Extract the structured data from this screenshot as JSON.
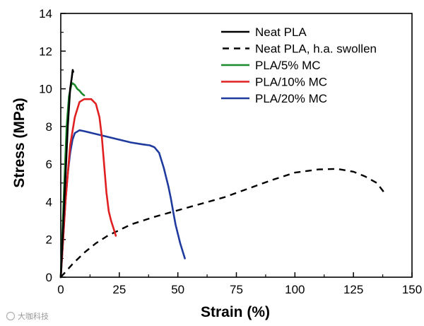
{
  "chart_data": {
    "type": "line",
    "title": "",
    "xlabel": "Strain (%)",
    "ylabel": "Stress (MPa)",
    "xlim": [
      0,
      150
    ],
    "ylim": [
      0,
      14
    ],
    "x_ticks": [
      0,
      25,
      50,
      75,
      100,
      125,
      150
    ],
    "y_ticks": [
      0,
      2,
      4,
      6,
      8,
      10,
      12,
      14
    ],
    "legend_position": "top-right",
    "series": [
      {
        "name": "Neat PLA",
        "color": "#000000",
        "dash": "solid",
        "points": [
          [
            0,
            0
          ],
          [
            1.5,
            4
          ],
          [
            3,
            8
          ],
          [
            4,
            10
          ],
          [
            4.7,
            10.6
          ],
          [
            5.1,
            11.0
          ],
          [
            5.3,
            10.9
          ]
        ]
      },
      {
        "name": "Neat PLA, h.a. swollen",
        "color": "#000000",
        "dash": "dashed",
        "points": [
          [
            0,
            0
          ],
          [
            5,
            0.7
          ],
          [
            10,
            1.3
          ],
          [
            15,
            1.8
          ],
          [
            20,
            2.2
          ],
          [
            30,
            2.8
          ],
          [
            40,
            3.2
          ],
          [
            50,
            3.55
          ],
          [
            60,
            3.9
          ],
          [
            70,
            4.25
          ],
          [
            80,
            4.7
          ],
          [
            90,
            5.15
          ],
          [
            100,
            5.55
          ],
          [
            110,
            5.72
          ],
          [
            118,
            5.75
          ],
          [
            125,
            5.6
          ],
          [
            130,
            5.35
          ],
          [
            135,
            5.0
          ],
          [
            139,
            4.35
          ]
        ]
      },
      {
        "name": "PLA/5% MC",
        "color": "#1a8a2a",
        "dash": "solid",
        "points": [
          [
            0,
            0
          ],
          [
            1.5,
            5
          ],
          [
            2.5,
            8
          ],
          [
            3.5,
            9.6
          ],
          [
            4.5,
            10.2
          ],
          [
            5,
            10.3
          ],
          [
            6,
            10.2
          ],
          [
            7,
            10.0
          ],
          [
            8,
            9.9
          ],
          [
            9,
            9.75
          ],
          [
            10,
            9.65
          ]
        ]
      },
      {
        "name": "PLA/10% MC",
        "color": "#e02020",
        "dash": "solid",
        "points": [
          [
            0,
            0
          ],
          [
            2,
            4
          ],
          [
            4,
            7
          ],
          [
            6,
            8.5
          ],
          [
            8,
            9.3
          ],
          [
            10,
            9.45
          ],
          [
            13,
            9.45
          ],
          [
            15,
            9.2
          ],
          [
            16.5,
            8.5
          ],
          [
            17.5,
            7.5
          ],
          [
            18.5,
            6
          ],
          [
            19.5,
            4.5
          ],
          [
            20.5,
            3.5
          ],
          [
            21.5,
            3.0
          ],
          [
            22.5,
            2.6
          ],
          [
            23.5,
            2.2
          ]
        ]
      },
      {
        "name": "PLA/20% MC",
        "color": "#1f3b9e",
        "dash": "solid",
        "points": [
          [
            0,
            0
          ],
          [
            1,
            2
          ],
          [
            2,
            4
          ],
          [
            3,
            5.5
          ],
          [
            4,
            6.6
          ],
          [
            5,
            7.3
          ],
          [
            6,
            7.65
          ],
          [
            8,
            7.8
          ],
          [
            10,
            7.75
          ],
          [
            15,
            7.6
          ],
          [
            20,
            7.45
          ],
          [
            25,
            7.3
          ],
          [
            30,
            7.15
          ],
          [
            35,
            7.05
          ],
          [
            38,
            7.0
          ],
          [
            40,
            6.9
          ],
          [
            42,
            6.6
          ],
          [
            44,
            5.8
          ],
          [
            46,
            4.8
          ],
          [
            47,
            4.2
          ],
          [
            48,
            3.5
          ],
          [
            49,
            2.8
          ],
          [
            50,
            2.3
          ],
          [
            51,
            1.8
          ],
          [
            52,
            1.4
          ],
          [
            53,
            1.0
          ]
        ]
      }
    ]
  },
  "watermark": {
    "text": "大咖科技"
  }
}
